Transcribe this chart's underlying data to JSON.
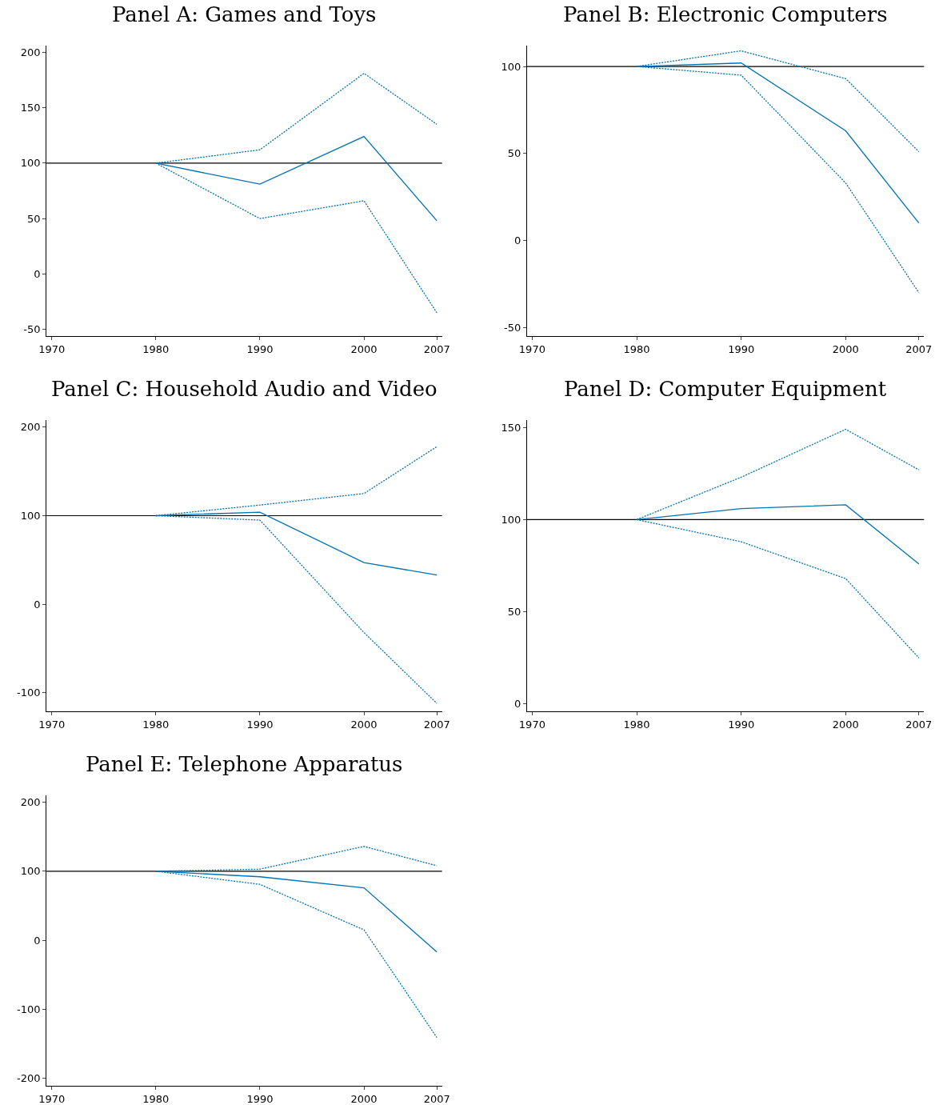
{
  "chart_data": [
    {
      "type": "line",
      "title": "Panel A: Games and Toys",
      "x": [
        1980,
        1990,
        2000,
        2007
      ],
      "xlim": [
        1969.5,
        2007.5
      ],
      "xticks": [
        1970,
        1980,
        1990,
        2000,
        2007
      ],
      "ylim": [
        -56,
        206
      ],
      "yticks": [
        -50,
        0,
        50,
        100,
        150,
        200
      ],
      "grid": false,
      "marker": "none",
      "ref_lines": [
        {
          "axis": "y",
          "value": 100,
          "color": "#000000",
          "line_style": "solid"
        }
      ],
      "series": [
        {
          "color": "#0072b2",
          "line_style": "solid",
          "values": [
            100,
            81,
            124,
            48
          ]
        },
        {
          "color": "#0072b2",
          "line_style": "dotted",
          "values": [
            100,
            112,
            181,
            135
          ]
        },
        {
          "color": "#0072b2",
          "line_style": "dotted",
          "values": [
            100,
            50,
            66,
            -35
          ]
        }
      ]
    },
    {
      "type": "line",
      "title": "Panel B: Electronic Computers",
      "x": [
        1980,
        1990,
        2000,
        2007
      ],
      "xlim": [
        1969.5,
        2007.5
      ],
      "xticks": [
        1970,
        1980,
        1990,
        2000,
        2007
      ],
      "ylim": [
        -55,
        112
      ],
      "yticks": [
        -50,
        0,
        50,
        100
      ],
      "grid": false,
      "marker": "none",
      "ref_lines": [
        {
          "axis": "y",
          "value": 100,
          "color": "#000000",
          "line_style": "solid"
        }
      ],
      "series": [
        {
          "color": "#0072b2",
          "line_style": "solid",
          "values": [
            100,
            102,
            63,
            10
          ]
        },
        {
          "color": "#0072b2",
          "line_style": "dotted",
          "values": [
            100,
            109,
            93,
            51
          ]
        },
        {
          "color": "#0072b2",
          "line_style": "dotted",
          "values": [
            100,
            95,
            33,
            -30
          ]
        }
      ]
    },
    {
      "type": "line",
      "title": "Panel C: Household Audio and Video",
      "x": [
        1980,
        1990,
        2000,
        2007
      ],
      "xlim": [
        1969.5,
        2007.5
      ],
      "xticks": [
        1970,
        1980,
        1990,
        2000,
        2007
      ],
      "ylim": [
        -121,
        208
      ],
      "yticks": [
        -100,
        0,
        100,
        200
      ],
      "grid": false,
      "marker": "none",
      "ref_lines": [
        {
          "axis": "y",
          "value": 100,
          "color": "#000000",
          "line_style": "solid"
        }
      ],
      "series": [
        {
          "color": "#0072b2",
          "line_style": "solid",
          "values": [
            100,
            104,
            47,
            33
          ]
        },
        {
          "color": "#0072b2",
          "line_style": "dotted",
          "values": [
            100,
            112,
            125,
            178
          ]
        },
        {
          "color": "#0072b2",
          "line_style": "dotted",
          "values": [
            100,
            95,
            -32,
            -112
          ]
        }
      ]
    },
    {
      "type": "line",
      "title": "Panel D: Computer Equipment",
      "x": [
        1980,
        1990,
        2000,
        2007
      ],
      "xlim": [
        1969.5,
        2007.5
      ],
      "xticks": [
        1970,
        1980,
        1990,
        2000,
        2007
      ],
      "ylim": [
        -4,
        154
      ],
      "yticks": [
        0,
        50,
        100,
        150
      ],
      "grid": false,
      "marker": "none",
      "ref_lines": [
        {
          "axis": "y",
          "value": 100,
          "color": "#000000",
          "line_style": "solid"
        }
      ],
      "series": [
        {
          "color": "#0072b2",
          "line_style": "solid",
          "values": [
            100,
            106,
            108,
            76
          ]
        },
        {
          "color": "#0072b2",
          "line_style": "dotted",
          "values": [
            100,
            123,
            149,
            127
          ]
        },
        {
          "color": "#0072b2",
          "line_style": "dotted",
          "values": [
            100,
            88,
            68,
            25
          ]
        }
      ]
    },
    {
      "type": "line",
      "title": "Panel E: Telephone Apparatus",
      "x": [
        1980,
        1990,
        2000,
        2007
      ],
      "xlim": [
        1969.5,
        2007.5
      ],
      "xticks": [
        1970,
        1980,
        1990,
        2000,
        2007
      ],
      "ylim": [
        -211,
        210
      ],
      "yticks": [
        -200,
        -100,
        0,
        100,
        200
      ],
      "grid": false,
      "marker": "none",
      "ref_lines": [
        {
          "axis": "y",
          "value": 100,
          "color": "#000000",
          "line_style": "solid"
        }
      ],
      "series": [
        {
          "color": "#0072b2",
          "line_style": "solid",
          "values": [
            100,
            92,
            76,
            -17
          ]
        },
        {
          "color": "#0072b2",
          "line_style": "dotted",
          "values": [
            100,
            103,
            136,
            108
          ]
        },
        {
          "color": "#0072b2",
          "line_style": "dotted",
          "values": [
            100,
            81,
            15,
            -141
          ]
        }
      ]
    }
  ]
}
